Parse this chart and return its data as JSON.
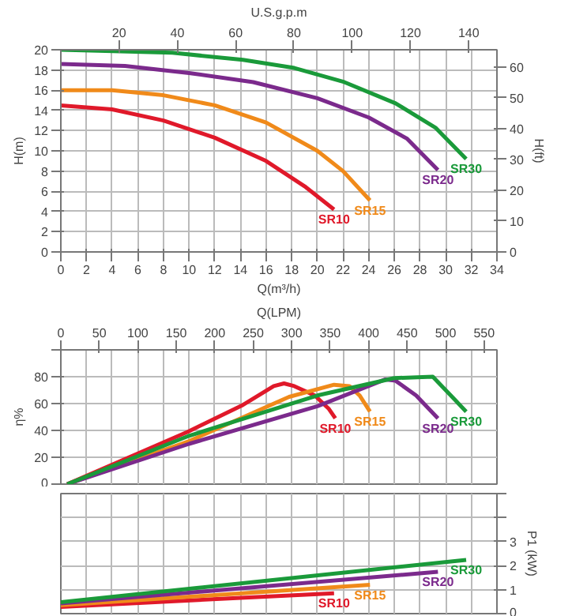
{
  "chart_data": [
    {
      "type": "line",
      "xlabel": "Q(m³/h)",
      "ylabel": "H(m)",
      "y2label": "H(ft)",
      "x2label": "U.S.g.p.m",
      "xlim": [
        0,
        34
      ],
      "xticks": [
        0,
        2,
        4,
        6,
        8,
        10,
        12,
        14,
        16,
        18,
        20,
        22,
        24,
        26,
        28,
        30,
        32,
        34
      ],
      "ylim": [
        0,
        20
      ],
      "yticks": [
        0,
        2,
        4,
        6,
        8,
        10,
        12,
        14,
        16,
        18,
        20
      ],
      "y2lim": [
        0,
        65.6
      ],
      "y2ticks": [
        0,
        10,
        20,
        30,
        40,
        50,
        60
      ],
      "x2lim": [
        0,
        149.7
      ],
      "x2ticks": [
        20,
        40,
        60,
        80,
        100,
        120,
        140
      ],
      "grid": true,
      "marker": "none",
      "line_style": "solid",
      "series": [
        {
          "name": "SR10",
          "color": "#e0192a",
          "x": [
            0,
            4,
            8,
            12,
            16,
            19,
            21.3
          ],
          "values": [
            14.5,
            14.1,
            13,
            11.3,
            9,
            6.5,
            4.2
          ]
        },
        {
          "name": "SR15",
          "color": "#f08a1a",
          "x": [
            0,
            4,
            8,
            12,
            16,
            20,
            22,
            24.1
          ],
          "values": [
            16,
            16,
            15.5,
            14.5,
            12.8,
            10,
            8,
            5.1
          ]
        },
        {
          "name": "SR20",
          "color": "#7b2a8c",
          "x": [
            0,
            5,
            10,
            15,
            20,
            24,
            27,
            29.4
          ],
          "values": [
            18.6,
            18.4,
            17.7,
            16.8,
            15.2,
            13.3,
            11.2,
            8.1
          ]
        },
        {
          "name": "SR30",
          "color": "#1a9a3a",
          "x": [
            0,
            8.7,
            14.2,
            18.2,
            22.1,
            26.1,
            29.2,
            31.6
          ],
          "values": [
            20,
            19.7,
            19,
            18.2,
            16.8,
            14.7,
            12.3,
            9.2
          ]
        }
      ]
    },
    {
      "type": "line",
      "ylabel": "η%",
      "x2label": "Q(LPM)",
      "x2lim": [
        0,
        566.7
      ],
      "x2ticks": [
        0,
        50,
        100,
        150,
        200,
        250,
        300,
        350,
        400,
        450,
        500,
        550
      ],
      "xlim": [
        0,
        34
      ],
      "xticks": [
        0,
        2,
        4,
        6,
        8,
        10,
        12,
        14,
        16,
        18,
        20,
        22,
        24,
        26,
        28,
        30,
        32,
        34
      ],
      "ylim": [
        0,
        100
      ],
      "yticks": [
        0,
        20,
        40,
        60,
        80,
        {
          "value": 100,
          "label": null
        }
      ],
      "grid": true,
      "tick_labels": "y",
      "marker": "none",
      "line_style": "solid",
      "series": [
        {
          "name": "SR10",
          "color": "#e0192a",
          "x": [
            0.5,
            9.9,
            14.2,
            16.6,
            17.4,
            18.2,
            19.8,
            20.9,
            21.4
          ],
          "values": [
            0,
            39,
            59,
            73,
            75,
            73,
            66,
            56,
            49
          ]
        },
        {
          "name": "SR15",
          "color": "#f08a1a",
          "x": [
            0.5,
            10,
            17.8,
            21.3,
            22.5,
            23.3,
            24.1
          ],
          "values": [
            0,
            32,
            65,
            74,
            73,
            66,
            54
          ]
        },
        {
          "name": "SR20",
          "color": "#7b2a8c",
          "x": [
            0.5,
            10,
            20,
            25.3,
            26.1,
            27.7,
            29.4
          ],
          "values": [
            0,
            30,
            58,
            78,
            77,
            66,
            49
          ]
        },
        {
          "name": "SR30",
          "color": "#1a9a3a",
          "x": [
            0.5,
            10,
            20,
            26,
            29,
            30.8,
            31.6
          ],
          "values": [
            0,
            36,
            66,
            79,
            80,
            62,
            54
          ]
        }
      ]
    },
    {
      "type": "line",
      "y2label": "P1 (kW)",
      "xlim": [
        0,
        34
      ],
      "xticks": [
        0,
        2,
        4,
        6,
        8,
        10,
        12,
        14,
        16,
        18,
        20,
        22,
        24,
        26,
        28,
        30,
        32,
        34
      ],
      "y2lim": [
        0,
        5
      ],
      "y2ticks": [
        0,
        1,
        2,
        3,
        {
          "value": 4,
          "label": null
        },
        {
          "value": 5,
          "label": null
        }
      ],
      "grid": true,
      "tick_labels": "y",
      "marker": "none",
      "line_style": "solid",
      "series": [
        {
          "name": "SR10",
          "color": "#e0192a",
          "axis": "y2",
          "x": [
            0,
            21.3
          ],
          "values": [
            0.28,
            0.85
          ]
        },
        {
          "name": "SR15",
          "color": "#f08a1a",
          "axis": "y2",
          "x": [
            0,
            24.1
          ],
          "values": [
            0.35,
            1.2
          ]
        },
        {
          "name": "SR20",
          "color": "#7b2a8c",
          "axis": "y2",
          "x": [
            0,
            29.4
          ],
          "values": [
            0.43,
            1.74
          ]
        },
        {
          "name": "SR30",
          "color": "#1a9a3a",
          "axis": "y2",
          "x": [
            0,
            31.6
          ],
          "values": [
            0.48,
            2.24
          ]
        }
      ]
    }
  ]
}
